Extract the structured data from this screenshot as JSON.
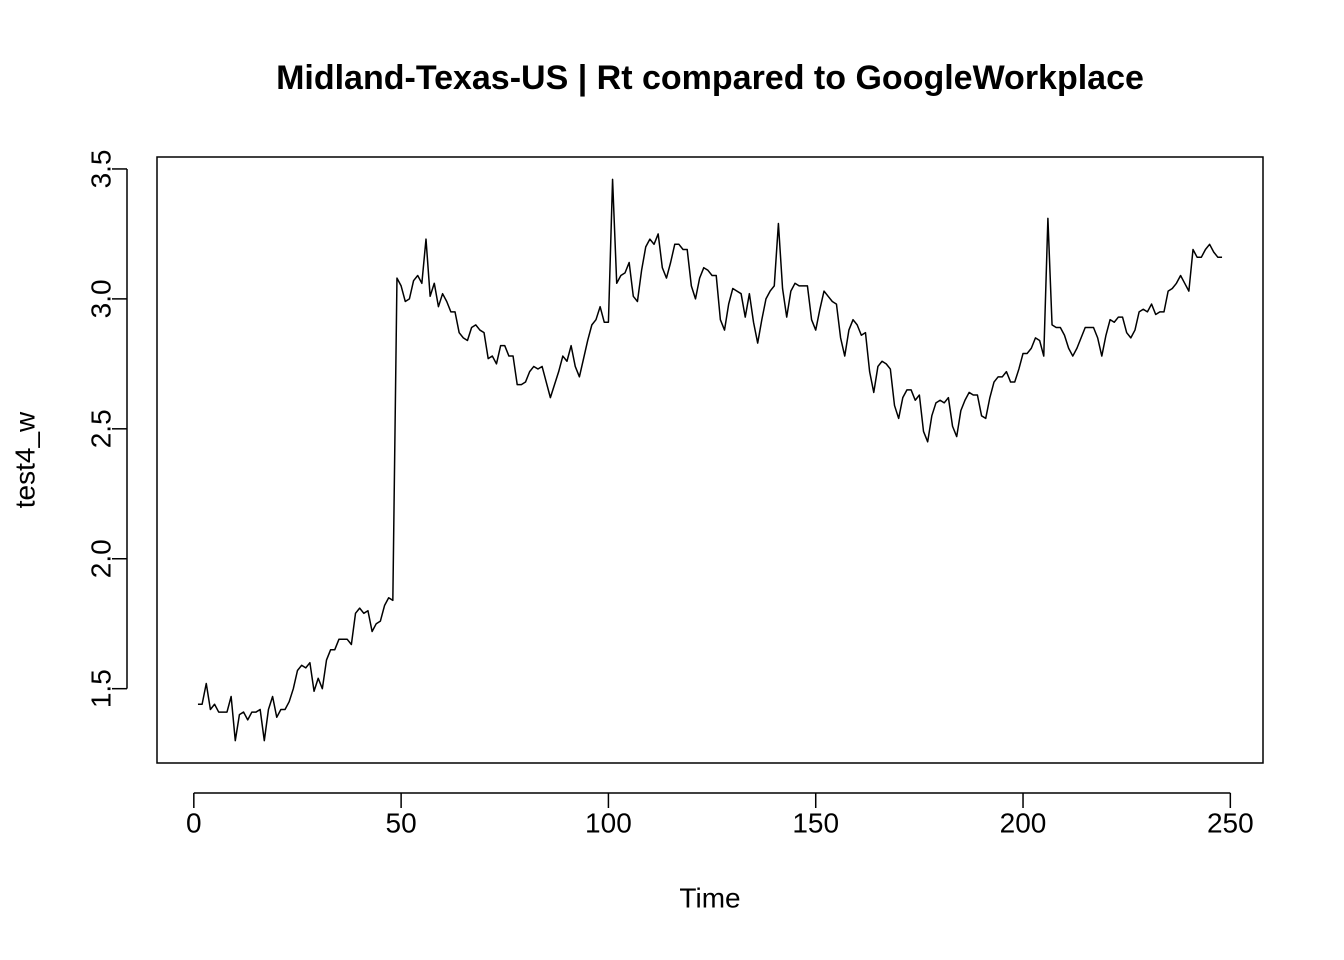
{
  "chart_data": {
    "type": "line",
    "title": "Midland-Texas-US | Rt compared to GoogleWorkplace",
    "xlabel": "Time",
    "ylabel": "test4_w",
    "color": "#000000",
    "grid": false,
    "xlim": [
      -8.88,
      257.88
    ],
    "ylim": [
      1.214,
      3.546
    ],
    "xticks": [
      0,
      50,
      100,
      150,
      200,
      250
    ],
    "yticks": [
      1.5,
      {
        "value": 2,
        "label": "2.0"
      },
      2.5,
      {
        "value": 3,
        "label": "3.0"
      },
      3.5
    ],
    "x": [
      1,
      2,
      3,
      4,
      5,
      6,
      7,
      8,
      9,
      10,
      11,
      12,
      13,
      14,
      15,
      16,
      17,
      18,
      19,
      20,
      21,
      22,
      23,
      24,
      25,
      26,
      27,
      28,
      29,
      30,
      31,
      32,
      33,
      34,
      35,
      36,
      37,
      38,
      39,
      40,
      41,
      42,
      43,
      44,
      45,
      46,
      47,
      48,
      49,
      50,
      51,
      52,
      53,
      54,
      55,
      56,
      57,
      58,
      59,
      60,
      61,
      62,
      63,
      64,
      65,
      66,
      67,
      68,
      69,
      70,
      71,
      72,
      73,
      74,
      75,
      76,
      77,
      78,
      79,
      80,
      81,
      82,
      83,
      84,
      85,
      86,
      87,
      88,
      89,
      90,
      91,
      92,
      93,
      94,
      95,
      96,
      97,
      98,
      99,
      100,
      101,
      102,
      103,
      104,
      105,
      106,
      107,
      108,
      109,
      110,
      111,
      112,
      113,
      114,
      115,
      116,
      117,
      118,
      119,
      120,
      121,
      122,
      123,
      124,
      125,
      126,
      127,
      128,
      129,
      130,
      131,
      132,
      133,
      134,
      135,
      136,
      137,
      138,
      139,
      140,
      141,
      142,
      143,
      144,
      145,
      146,
      147,
      148,
      149,
      150,
      151,
      152,
      153,
      154,
      155,
      156,
      157,
      158,
      159,
      160,
      161,
      162,
      163,
      164,
      165,
      166,
      167,
      168,
      169,
      170,
      171,
      172,
      173,
      174,
      175,
      176,
      177,
      178,
      179,
      180,
      181,
      182,
      183,
      184,
      185,
      186,
      187,
      188,
      189,
      190,
      191,
      192,
      193,
      194,
      195,
      196,
      197,
      198,
      199,
      200,
      201,
      202,
      203,
      204,
      205,
      206,
      207,
      208,
      209,
      210,
      211,
      212,
      213,
      214,
      215,
      216,
      217,
      218,
      219,
      220,
      221,
      222,
      223,
      224,
      225,
      226,
      227,
      228,
      229,
      230,
      231,
      232,
      233,
      234,
      235,
      236,
      237,
      238,
      239,
      240,
      241,
      242,
      243,
      244,
      245,
      246,
      247,
      248
    ],
    "values": [
      1.44,
      1.44,
      1.52,
      1.42,
      1.44,
      1.41,
      1.41,
      1.41,
      1.47,
      1.3,
      1.4,
      1.41,
      1.38,
      1.41,
      1.41,
      1.42,
      1.3,
      1.42,
      1.47,
      1.39,
      1.42,
      1.42,
      1.45,
      1.5,
      1.57,
      1.59,
      1.58,
      1.6,
      1.49,
      1.54,
      1.5,
      1.61,
      1.65,
      1.65,
      1.69,
      1.69,
      1.69,
      1.67,
      1.79,
      1.81,
      1.79,
      1.8,
      1.72,
      1.75,
      1.76,
      1.82,
      1.85,
      1.84,
      3.08,
      3.05,
      2.99,
      3.0,
      3.07,
      3.09,
      3.06,
      3.23,
      3.01,
      3.06,
      2.97,
      3.02,
      2.99,
      2.95,
      2.95,
      2.87,
      2.85,
      2.84,
      2.89,
      2.9,
      2.88,
      2.87,
      2.77,
      2.78,
      2.75,
      2.82,
      2.82,
      2.78,
      2.78,
      2.67,
      2.67,
      2.68,
      2.72,
      2.74,
      2.73,
      2.74,
      2.68,
      2.62,
      2.67,
      2.72,
      2.78,
      2.76,
      2.82,
      2.74,
      2.7,
      2.77,
      2.84,
      2.9,
      2.92,
      2.97,
      2.91,
      2.91,
      3.46,
      3.06,
      3.09,
      3.1,
      3.14,
      3.01,
      2.99,
      3.11,
      3.2,
      3.23,
      3.21,
      3.25,
      3.12,
      3.08,
      3.14,
      3.21,
      3.21,
      3.19,
      3.19,
      3.05,
      3.0,
      3.08,
      3.12,
      3.11,
      3.09,
      3.09,
      2.92,
      2.88,
      2.98,
      3.04,
      3.03,
      3.02,
      2.93,
      3.02,
      2.91,
      2.83,
      2.92,
      3.0,
      3.03,
      3.05,
      3.29,
      3.04,
      2.93,
      3.03,
      3.06,
      3.05,
      3.05,
      3.05,
      2.92,
      2.88,
      2.96,
      3.03,
      3.01,
      2.99,
      2.98,
      2.85,
      2.78,
      2.88,
      2.92,
      2.9,
      2.86,
      2.87,
      2.72,
      2.64,
      2.74,
      2.76,
      2.75,
      2.73,
      2.59,
      2.54,
      2.62,
      2.65,
      2.65,
      2.61,
      2.63,
      2.49,
      2.45,
      2.55,
      2.6,
      2.61,
      2.6,
      2.62,
      2.51,
      2.47,
      2.57,
      2.61,
      2.64,
      2.63,
      2.63,
      2.55,
      2.54,
      2.62,
      2.68,
      2.7,
      2.7,
      2.72,
      2.68,
      2.68,
      2.73,
      2.79,
      2.79,
      2.81,
      2.85,
      2.84,
      2.78,
      3.31,
      2.9,
      2.89,
      2.89,
      2.86,
      2.81,
      2.78,
      2.81,
      2.85,
      2.89,
      2.89,
      2.89,
      2.85,
      2.78,
      2.86,
      2.92,
      2.91,
      2.93,
      2.93,
      2.87,
      2.85,
      2.88,
      2.95,
      2.96,
      2.95,
      2.98,
      2.94,
      2.95,
      2.95,
      3.03,
      3.04,
      3.06,
      3.09,
      3.06,
      3.03,
      3.19,
      3.16,
      3.16,
      3.19,
      3.21,
      3.18,
      3.16,
      3.16
    ]
  }
}
